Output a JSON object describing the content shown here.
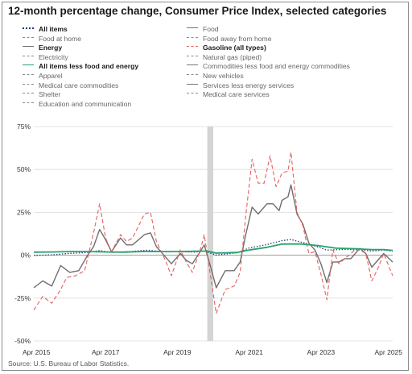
{
  "title": "12-month percentage change, Consumer Price Index, selected categories",
  "source": "Source: U.S. Bureau of Labor Statistics.",
  "legend": [
    {
      "label": "All items",
      "color": "#1f3f7a",
      "style": "dotted",
      "bold": true,
      "visible": true
    },
    {
      "label": "Food",
      "color": "#777777",
      "style": "solid",
      "bold": false,
      "visible": false
    },
    {
      "label": "Food at home",
      "color": "#8a8a8a",
      "style": "dashed",
      "bold": false,
      "visible": false
    },
    {
      "label": "Food away from home",
      "color": "#8a8a8a",
      "style": "dashed",
      "bold": false,
      "visible": false
    },
    {
      "label": "Energy",
      "color": "#6e6e6e",
      "style": "solid",
      "bold": true,
      "visible": true
    },
    {
      "label": "Gasoline (all types)",
      "color": "#e36060",
      "style": "dashed",
      "bold": true,
      "visible": true
    },
    {
      "label": "Electricity",
      "color": "#8a8a8a",
      "style": "dashed",
      "bold": false,
      "visible": false
    },
    {
      "label": "Natural gas (piped)",
      "color": "#8a8a8a",
      "style": "dashed",
      "bold": false,
      "visible": false
    },
    {
      "label": "All items less food and energy",
      "color": "#2aa36b",
      "style": "solid",
      "bold": true,
      "visible": true
    },
    {
      "label": "Commodities less food and energy commodities",
      "color": "#777777",
      "style": "solid",
      "bold": false,
      "visible": false
    },
    {
      "label": "Apparel",
      "color": "#8a8a8a",
      "style": "dashed",
      "bold": false,
      "visible": false
    },
    {
      "label": "New vehicles",
      "color": "#8a8a8a",
      "style": "dashed",
      "bold": false,
      "visible": false
    },
    {
      "label": "Medical care commodities",
      "color": "#8a8a8a",
      "style": "dashed",
      "bold": false,
      "visible": false
    },
    {
      "label": "Services less energy services",
      "color": "#777777",
      "style": "solid",
      "bold": false,
      "visible": false
    },
    {
      "label": "Shelter",
      "color": "#8a8a8a",
      "style": "dashed",
      "bold": false,
      "visible": false
    },
    {
      "label": "Medical care services",
      "color": "#8a8a8a",
      "style": "dashed",
      "bold": false,
      "visible": false
    },
    {
      "label": "Education and communication",
      "color": "#8a8a8a",
      "style": "dashed",
      "bold": false,
      "visible": false
    }
  ],
  "chart_data": {
    "type": "line",
    "title": "12-month percentage change, Consumer Price Index, selected categories",
    "xlabel": "",
    "ylabel": "",
    "x_ticks": [
      "Apr 2015",
      "Apr 2017",
      "Apr 2019",
      "Apr 2021",
      "Apr 2023",
      "Apr 2025"
    ],
    "x_range": [
      "2015-04",
      "2025-04"
    ],
    "y_ticks": [
      "75%",
      "50%",
      "25%",
      "0%",
      "-25%",
      "-50%"
    ],
    "ylim": [
      -50,
      75
    ],
    "grid": "horizontal",
    "recession_shading": {
      "start": "2020-02",
      "end": "2020-04",
      "color": "#d4d4d4"
    },
    "series": [
      {
        "name": "All items",
        "color": "#1f3f7a",
        "style": "dotted",
        "points": [
          [
            "2015-04",
            -0.2
          ],
          [
            "2015-10",
            0.2
          ],
          [
            "2016-04",
            1.1
          ],
          [
            "2016-10",
            1.6
          ],
          [
            "2017-02",
            2.7
          ],
          [
            "2017-06",
            1.6
          ],
          [
            "2017-12",
            2.1
          ],
          [
            "2018-06",
            2.9
          ],
          [
            "2018-12",
            1.9
          ],
          [
            "2019-04",
            2.0
          ],
          [
            "2019-10",
            1.8
          ],
          [
            "2020-01",
            2.5
          ],
          [
            "2020-05",
            0.1
          ],
          [
            "2020-12",
            1.4
          ],
          [
            "2021-04",
            4.2
          ],
          [
            "2021-10",
            6.2
          ],
          [
            "2022-03",
            8.5
          ],
          [
            "2022-06",
            9.1
          ],
          [
            "2022-12",
            6.5
          ],
          [
            "2023-06",
            3.0
          ],
          [
            "2023-12",
            3.4
          ],
          [
            "2024-06",
            3.0
          ],
          [
            "2024-09",
            2.4
          ],
          [
            "2025-01",
            3.0
          ],
          [
            "2025-04",
            2.3
          ]
        ]
      },
      {
        "name": "Energy",
        "color": "#6e6e6e",
        "style": "solid",
        "points": [
          [
            "2015-04",
            -19
          ],
          [
            "2015-07",
            -15
          ],
          [
            "2015-10",
            -18
          ],
          [
            "2016-01",
            -6
          ],
          [
            "2016-04",
            -10
          ],
          [
            "2016-07",
            -9
          ],
          [
            "2016-10",
            0
          ],
          [
            "2016-12",
            5
          ],
          [
            "2017-02",
            15
          ],
          [
            "2017-04",
            9
          ],
          [
            "2017-06",
            2
          ],
          [
            "2017-09",
            10
          ],
          [
            "2017-11",
            6
          ],
          [
            "2018-01",
            6
          ],
          [
            "2018-05",
            12
          ],
          [
            "2018-07",
            13
          ],
          [
            "2018-09",
            5
          ],
          [
            "2018-12",
            -1
          ],
          [
            "2019-02",
            -5
          ],
          [
            "2019-05",
            1
          ],
          [
            "2019-07",
            -3
          ],
          [
            "2019-09",
            -5
          ],
          [
            "2019-12",
            3
          ],
          [
            "2020-01",
            6
          ],
          [
            "2020-03",
            -6
          ],
          [
            "2020-05",
            -19
          ],
          [
            "2020-08",
            -9
          ],
          [
            "2020-11",
            -9
          ],
          [
            "2021-01",
            -4
          ],
          [
            "2021-03",
            13
          ],
          [
            "2021-05",
            28
          ],
          [
            "2021-07",
            24
          ],
          [
            "2021-10",
            30
          ],
          [
            "2021-12",
            30
          ],
          [
            "2022-02",
            26
          ],
          [
            "2022-03",
            32
          ],
          [
            "2022-05",
            34
          ],
          [
            "2022-06",
            41
          ],
          [
            "2022-08",
            24
          ],
          [
            "2022-10",
            18
          ],
          [
            "2022-12",
            7
          ],
          [
            "2023-02",
            3
          ],
          [
            "2023-04",
            -5
          ],
          [
            "2023-06",
            -16
          ],
          [
            "2023-08",
            -4
          ],
          [
            "2023-10",
            -4
          ],
          [
            "2023-12",
            -2
          ],
          [
            "2024-02",
            -2
          ],
          [
            "2024-05",
            4
          ],
          [
            "2024-07",
            1
          ],
          [
            "2024-09",
            -7
          ],
          [
            "2024-11",
            -3
          ],
          [
            "2025-01",
            1
          ],
          [
            "2025-04",
            -4
          ]
        ]
      },
      {
        "name": "Gasoline (all types)",
        "color": "#e36060",
        "style": "dashed",
        "points": [
          [
            "2015-04",
            -32
          ],
          [
            "2015-07",
            -24
          ],
          [
            "2015-10",
            -28
          ],
          [
            "2016-01",
            -20
          ],
          [
            "2016-03",
            -13
          ],
          [
            "2016-06",
            -12
          ],
          [
            "2016-09",
            -9
          ],
          [
            "2016-12",
            13
          ],
          [
            "2017-02",
            30
          ],
          [
            "2017-04",
            10
          ],
          [
            "2017-06",
            2
          ],
          [
            "2017-09",
            12
          ],
          [
            "2017-11",
            8
          ],
          [
            "2018-01",
            10
          ],
          [
            "2018-05",
            24
          ],
          [
            "2018-07",
            25
          ],
          [
            "2018-09",
            8
          ],
          [
            "2018-12",
            -3
          ],
          [
            "2019-02",
            -12
          ],
          [
            "2019-05",
            3
          ],
          [
            "2019-07",
            -4
          ],
          [
            "2019-09",
            -10
          ],
          [
            "2019-12",
            5
          ],
          [
            "2020-01",
            12
          ],
          [
            "2020-03",
            -11
          ],
          [
            "2020-05",
            -34
          ],
          [
            "2020-08",
            -20
          ],
          [
            "2020-11",
            -18
          ],
          [
            "2021-01",
            -10
          ],
          [
            "2021-03",
            25
          ],
          [
            "2021-05",
            56
          ],
          [
            "2021-07",
            42
          ],
          [
            "2021-09",
            42
          ],
          [
            "2021-11",
            58
          ],
          [
            "2022-01",
            40
          ],
          [
            "2022-03",
            48
          ],
          [
            "2022-05",
            49
          ],
          [
            "2022-06",
            60
          ],
          [
            "2022-08",
            25
          ],
          [
            "2022-10",
            17
          ],
          [
            "2022-12",
            1
          ],
          [
            "2023-02",
            2
          ],
          [
            "2023-04",
            -11
          ],
          [
            "2023-06",
            -26
          ],
          [
            "2023-08",
            3
          ],
          [
            "2023-10",
            -5
          ],
          [
            "2023-12",
            -2
          ],
          [
            "2024-02",
            1
          ],
          [
            "2024-04",
            4
          ],
          [
            "2024-07",
            1
          ],
          [
            "2024-09",
            -15
          ],
          [
            "2024-11",
            -8
          ],
          [
            "2025-01",
            1
          ],
          [
            "2025-04",
            -12
          ]
        ]
      },
      {
        "name": "All items less food and energy",
        "color": "#2aa36b",
        "style": "solid",
        "points": [
          [
            "2015-04",
            1.8
          ],
          [
            "2015-10",
            1.9
          ],
          [
            "2016-04",
            2.1
          ],
          [
            "2016-10",
            2.1
          ],
          [
            "2017-04",
            1.9
          ],
          [
            "2017-10",
            1.8
          ],
          [
            "2018-04",
            2.1
          ],
          [
            "2018-10",
            2.1
          ],
          [
            "2019-04",
            2.1
          ],
          [
            "2019-10",
            2.3
          ],
          [
            "2020-02",
            2.4
          ],
          [
            "2020-05",
            1.2
          ],
          [
            "2020-12",
            1.6
          ],
          [
            "2021-04",
            3.0
          ],
          [
            "2021-10",
            4.6
          ],
          [
            "2022-03",
            6.5
          ],
          [
            "2022-09",
            6.6
          ],
          [
            "2023-03",
            5.6
          ],
          [
            "2023-09",
            4.1
          ],
          [
            "2024-03",
            3.8
          ],
          [
            "2024-09",
            3.3
          ],
          [
            "2025-01",
            3.3
          ],
          [
            "2025-04",
            2.8
          ]
        ]
      }
    ]
  }
}
